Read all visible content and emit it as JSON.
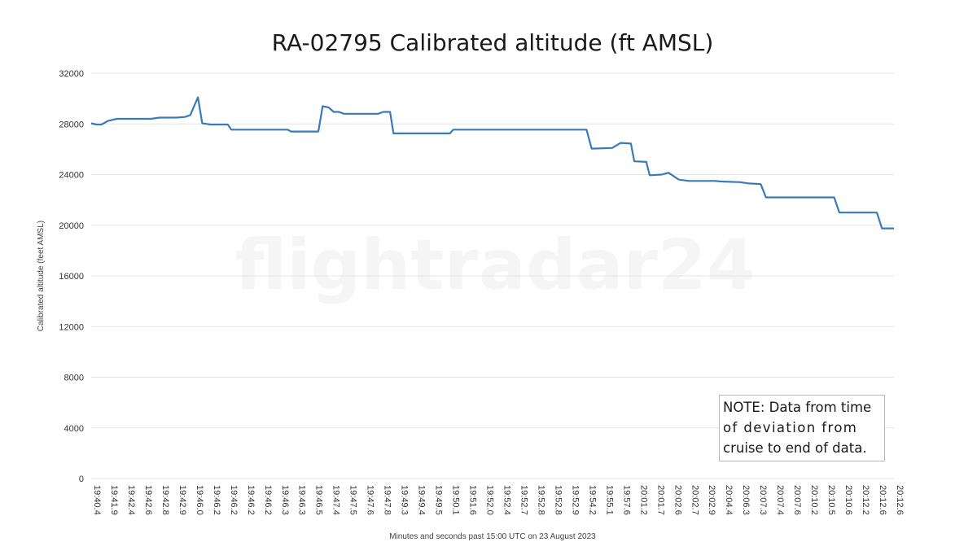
{
  "chart_data": {
    "type": "line",
    "title": "RA-02795 Calibrated altitude (ft AMSL)",
    "xlabel": "Minutes and seconds past 15:00 UTC on 23 August 2023",
    "ylabel": "Calibrated altitude (feet AMSL)",
    "ylim": [
      0,
      32000
    ],
    "yticks": [
      0,
      4000,
      8000,
      12000,
      16000,
      20000,
      24000,
      28000,
      32000
    ],
    "categories": [
      "19:40.4",
      "19:41.9",
      "19:42.4",
      "19:42.6",
      "19:42.8",
      "19:42.9",
      "19:46.0",
      "19:46.2",
      "19:46.2",
      "19:46.2",
      "19:46.2",
      "19:46.3",
      "19:46.3",
      "19:46.5",
      "19:47.4",
      "19:47.5",
      "19:47.6",
      "19:47.8",
      "19:49.3",
      "19:49.4",
      "19:49.5",
      "19:50.1",
      "19:51.6",
      "19:52.0",
      "19:52.4",
      "19:52.7",
      "19:52.8",
      "19:52.8",
      "19:52.9",
      "19:54.2",
      "19:55.1",
      "19:57.6",
      "20:01.2",
      "20:01.7",
      "20:02.6",
      "20:02.7",
      "20:02.9",
      "20:04.4",
      "20:06.3",
      "20:07.3",
      "20:07.4",
      "20:07.6",
      "20:10.2",
      "20:10.5",
      "20:10.6",
      "20:12.2",
      "20:12.6",
      "20:12.6"
    ],
    "grid": true,
    "watermark": "flightradar24",
    "series": [
      {
        "color": "#3a7ab8",
        "values": [
          [
            0.0,
            28050
          ],
          [
            0.3,
            27950
          ],
          [
            0.6,
            27950
          ],
          [
            1.0,
            28250
          ],
          [
            1.5,
            28400
          ],
          [
            2.5,
            28400
          ],
          [
            3.5,
            28400
          ],
          [
            4.0,
            28500
          ],
          [
            5.0,
            28500
          ],
          [
            5.5,
            28550
          ],
          [
            5.8,
            28700
          ],
          [
            6.25,
            30100
          ],
          [
            6.5,
            28050
          ],
          [
            7.0,
            27950
          ],
          [
            8.0,
            27950
          ],
          [
            8.2,
            27550
          ],
          [
            10.0,
            27550
          ],
          [
            11.0,
            27550
          ],
          [
            11.5,
            27550
          ],
          [
            11.7,
            27400
          ],
          [
            13.3,
            27400
          ],
          [
            13.55,
            29400
          ],
          [
            13.9,
            29300
          ],
          [
            14.2,
            28950
          ],
          [
            14.5,
            28950
          ],
          [
            14.8,
            28800
          ],
          [
            16.0,
            28800
          ],
          [
            16.8,
            28800
          ],
          [
            17.1,
            28950
          ],
          [
            17.5,
            28950
          ],
          [
            17.7,
            27250
          ],
          [
            21.0,
            27250
          ],
          [
            21.2,
            27550
          ],
          [
            29.0,
            27550
          ],
          [
            29.3,
            26050
          ],
          [
            30.5,
            26100
          ],
          [
            31.0,
            26500
          ],
          [
            31.6,
            26450
          ],
          [
            31.8,
            25050
          ],
          [
            32.5,
            25000
          ],
          [
            32.7,
            23950
          ],
          [
            33.4,
            24000
          ],
          [
            33.8,
            24150
          ],
          [
            34.4,
            23600
          ],
          [
            35.0,
            23500
          ],
          [
            36.5,
            23500
          ],
          [
            37.0,
            23450
          ],
          [
            38.0,
            23400
          ],
          [
            38.5,
            23300
          ],
          [
            39.2,
            23250
          ],
          [
            39.5,
            22200
          ],
          [
            43.5,
            22200
          ],
          [
            43.8,
            21000
          ],
          [
            46.0,
            21000
          ],
          [
            46.3,
            19750
          ],
          [
            47.0,
            19750
          ]
        ]
      }
    ]
  },
  "note": {
    "lines": [
      "NOTE: Data from time",
      "of deviation from",
      "cruise to end of data."
    ]
  }
}
